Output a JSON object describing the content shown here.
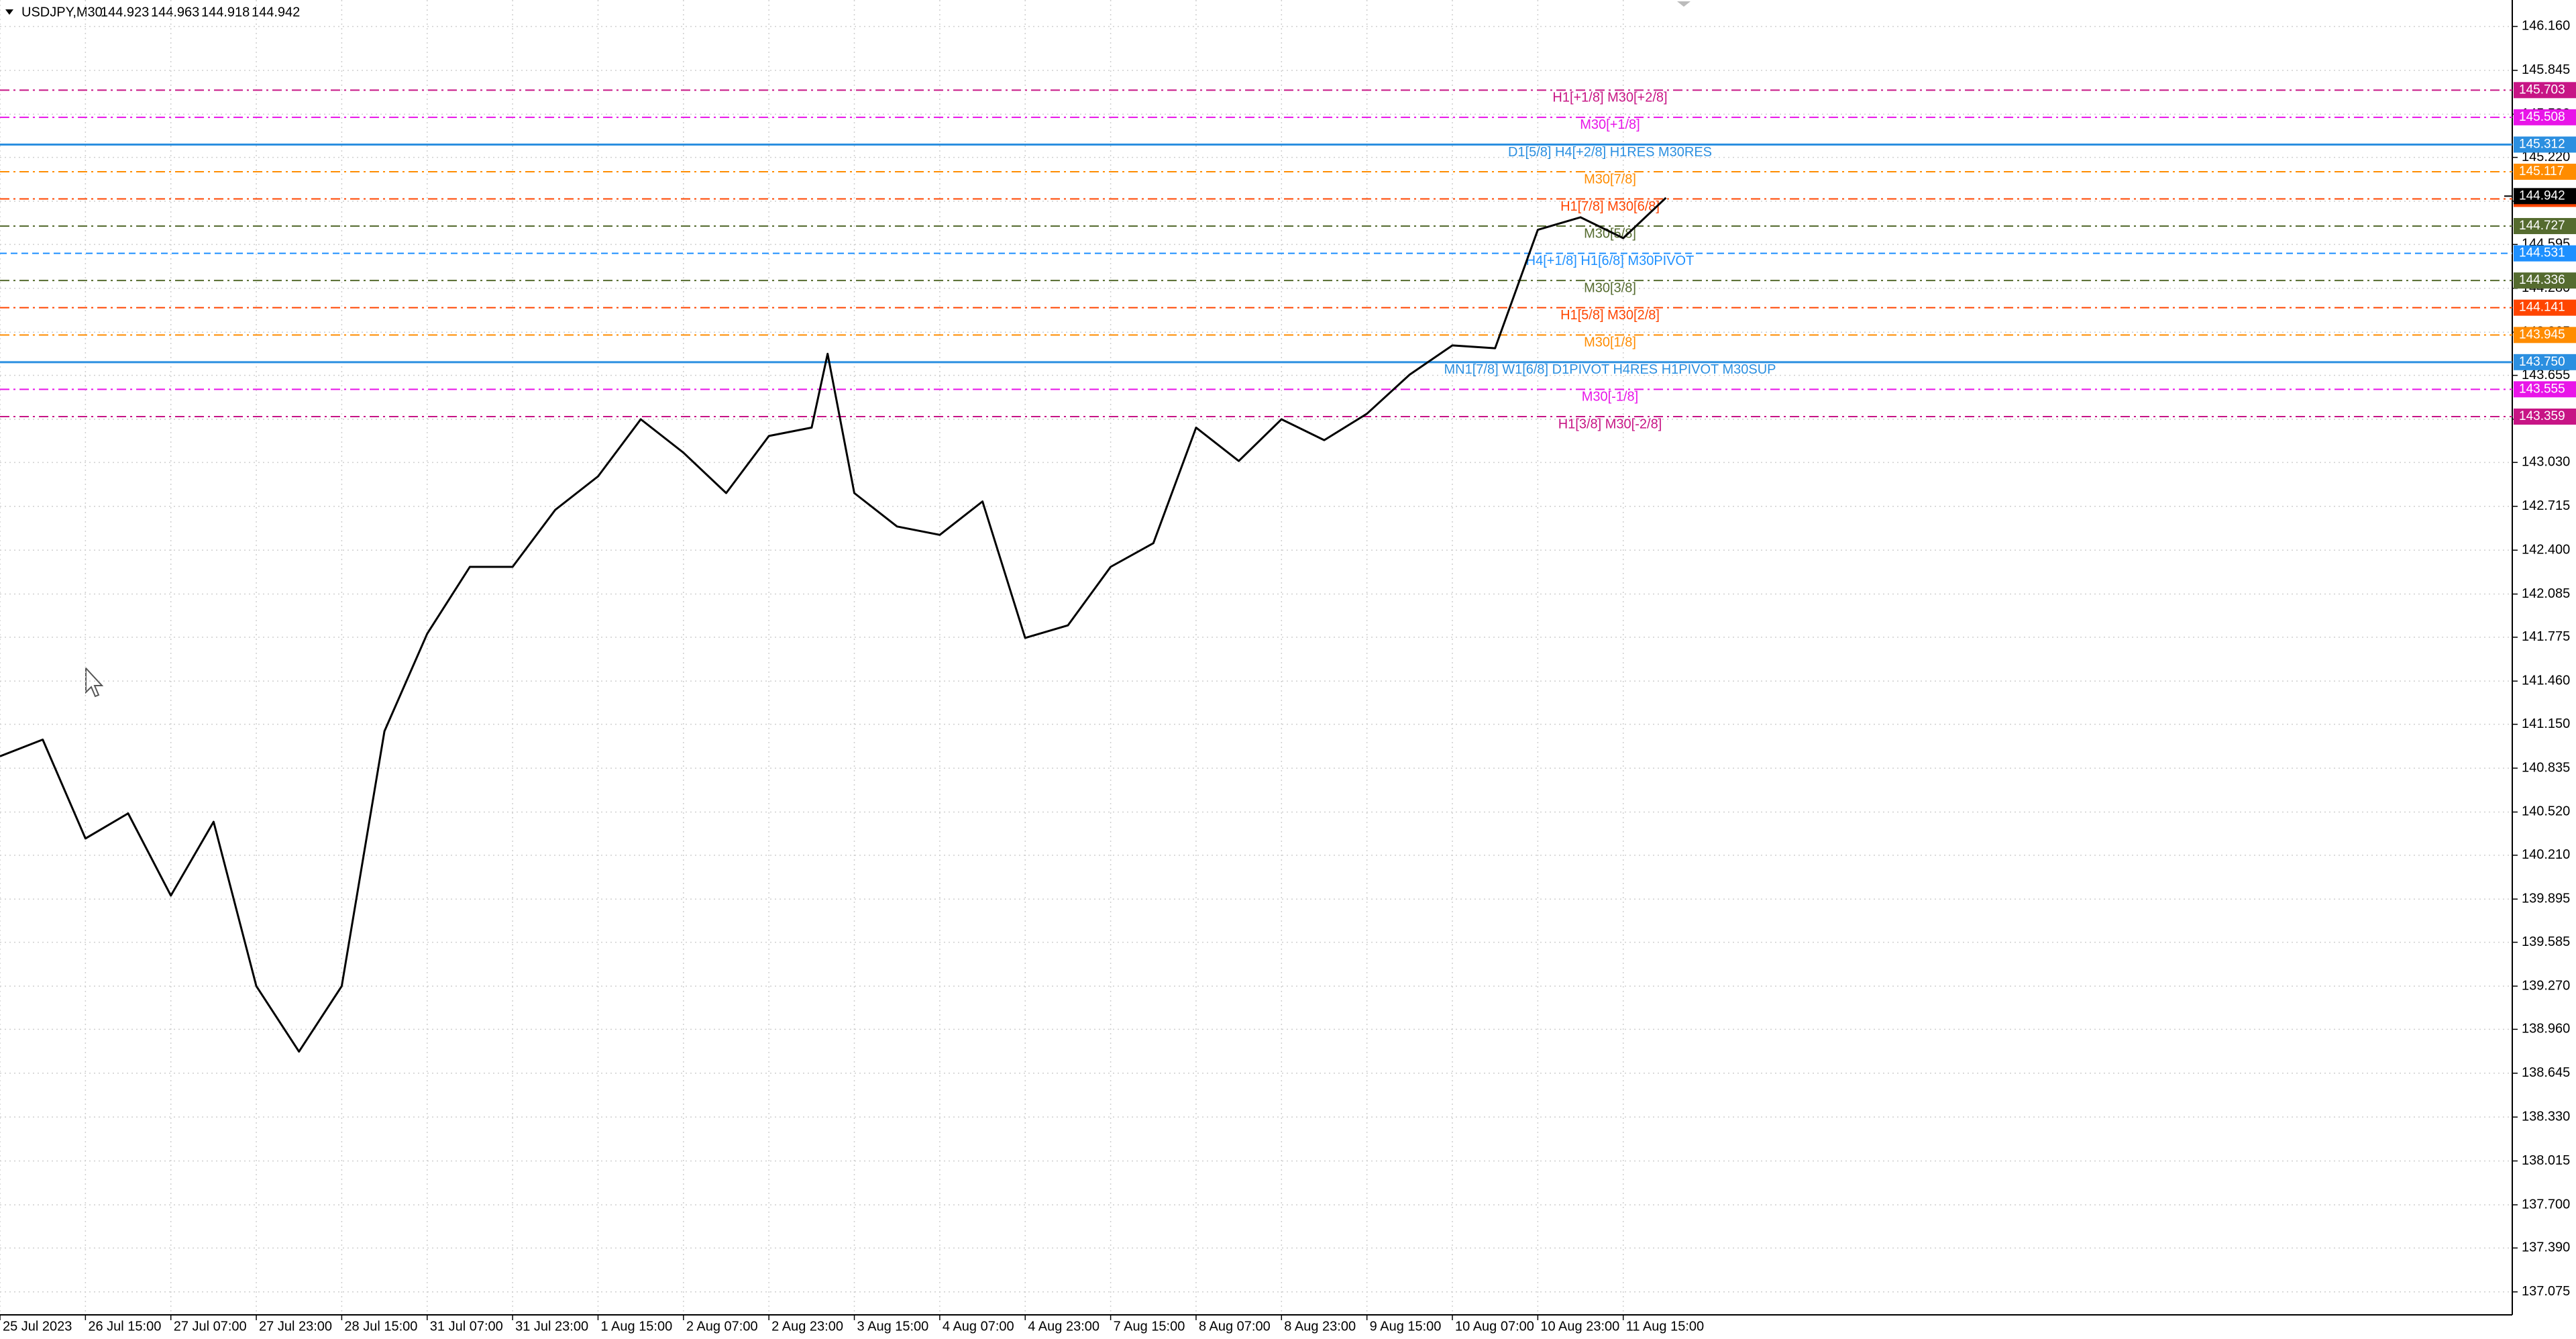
{
  "header": {
    "symbol": "USDJPY,M30",
    "ohlc": [
      144.923,
      144.963,
      144.918,
      144.942
    ]
  },
  "chart_data": {
    "type": "line",
    "x": [
      0,
      16,
      32,
      48,
      64,
      80,
      96,
      112,
      128,
      144,
      160,
      176,
      192,
      208,
      224,
      240,
      256,
      272,
      288,
      304,
      310,
      320,
      336,
      352,
      368,
      384,
      400,
      416,
      432,
      448,
      464,
      480,
      496,
      512,
      528,
      544,
      560,
      576,
      592,
      608,
      624
    ],
    "values": [
      140.92,
      141.04,
      140.33,
      140.51,
      139.92,
      140.45,
      139.27,
      138.8,
      139.27,
      141.1,
      141.8,
      142.28,
      142.28,
      142.69,
      142.93,
      143.34,
      143.1,
      142.81,
      143.22,
      143.28,
      143.81,
      142.81,
      142.57,
      142.51,
      142.75,
      141.77,
      141.86,
      142.28,
      142.45,
      143.28,
      143.04,
      143.34,
      143.19,
      143.38,
      143.66,
      143.87,
      143.85,
      144.7,
      144.79,
      144.64,
      144.93
    ],
    "color": "#000000",
    "xlim": [
      0,
      941
    ],
    "ylim": [
      136.91,
      146.35
    ],
    "xticks": [
      {
        "value": 0,
        "label": "25 Jul 2023"
      },
      {
        "value": 32,
        "label": "26 Jul 15:00"
      },
      {
        "value": 64,
        "label": "27 Jul 07:00"
      },
      {
        "value": 96,
        "label": "27 Jul 23:00"
      },
      {
        "value": 128,
        "label": "28 Jul 15:00"
      },
      {
        "value": 160,
        "label": "31 Jul 07:00"
      },
      {
        "value": 192,
        "label": "31 Jul 23:00"
      },
      {
        "value": 224,
        "label": "1 Aug 15:00"
      },
      {
        "value": 256,
        "label": "2 Aug 07:00"
      },
      {
        "value": 288,
        "label": "2 Aug 23:00"
      },
      {
        "value": 320,
        "label": "3 Aug 15:00"
      },
      {
        "value": 352,
        "label": "4 Aug 07:00"
      },
      {
        "value": 384,
        "label": "4 Aug 23:00"
      },
      {
        "value": 416,
        "label": "7 Aug 15:00"
      },
      {
        "value": 448,
        "label": "8 Aug 07:00"
      },
      {
        "value": 480,
        "label": "8 Aug 23:00"
      },
      {
        "value": 512,
        "label": "9 Aug 15:00"
      },
      {
        "value": 544,
        "label": "10 Aug 07:00"
      },
      {
        "value": 576,
        "label": "10 Aug 23:00"
      },
      {
        "value": 608,
        "label": "11 Aug 15:00"
      }
    ],
    "yticks": [
      {
        "value": 146.16,
        "label": "146.160"
      },
      145.845,
      {
        "value": 145.53,
        "label": "145.530"
      },
      {
        "value": 145.22,
        "label": "145.220"
      },
      144.905,
      144.595,
      {
        "value": 144.28,
        "label": "144.280"
      },
      143.965,
      143.655,
      {
        "value": 143.34,
        "label": "143.340"
      },
      {
        "value": 143.03,
        "label": "143.030"
      },
      142.715,
      {
        "value": 142.4,
        "label": "142.400"
      },
      142.085,
      141.775,
      {
        "value": 141.46,
        "label": "141.460"
      },
      {
        "value": 141.15,
        "label": "141.150"
      },
      140.835,
      {
        "value": 140.52,
        "label": "140.520"
      },
      {
        "value": 140.21,
        "label": "140.210"
      },
      139.895,
      139.585,
      {
        "value": 139.27,
        "label": "139.270"
      },
      {
        "value": 138.96,
        "label": "138.960"
      },
      138.645,
      {
        "value": 138.33,
        "label": "138.330"
      },
      138.015,
      {
        "value": 137.7,
        "label": "137.700"
      },
      {
        "value": 137.39,
        "label": "137.390"
      },
      137.075
    ],
    "grid": true,
    "levels": [
      {
        "price": 145.703,
        "label": "H1[+1/8] M30[+2/8]",
        "color": "#c71585",
        "style": "dashdot"
      },
      {
        "price": 145.508,
        "label": "M30[+1/8]",
        "color": "#e815e8",
        "style": "dashdot"
      },
      {
        "price": 145.312,
        "label": "D1[5/8] H4[+2/8] H1RES M30RES",
        "color": "#2b8fe0",
        "style": "solid"
      },
      {
        "price": 145.117,
        "label": "M30[7/8]",
        "color": "#ff8c00",
        "style": "dashdot"
      },
      {
        "price": 144.922,
        "label": "H1[7/8] M30[6/8]",
        "color": "#ff4500",
        "style": "dashdot"
      },
      {
        "price": 144.727,
        "label": "M30[5/8]",
        "color": "#556b2f",
        "style": "dashdot"
      },
      {
        "price": 144.531,
        "label": "H4[+1/8] H1[6/8] M30PIVOT",
        "color": "#1e90ff",
        "style": "dashed"
      },
      {
        "price": 144.336,
        "label": "M30[3/8]",
        "color": "#556b2f",
        "style": "dashdot"
      },
      {
        "price": 144.141,
        "label": "H1[5/8] M30[2/8]",
        "color": "#ff4500",
        "style": "dashdot"
      },
      {
        "price": 143.945,
        "label": "M30[1/8]",
        "color": "#ff8c00",
        "style": "dashdot"
      },
      {
        "price": {
          "value": 143.75,
          "label": "143.750"
        },
        "label": "MN1[7/8] W1[6/8] D1PIVOT H4RES H1PIVOT M30SUP",
        "color": "#2b8fe0",
        "style": "solid"
      },
      {
        "price": 143.555,
        "label": "M30[-1/8]",
        "color": "#e815e8",
        "style": "dashdot"
      },
      {
        "price": 143.359,
        "label": "H1[3/8] M30[-2/8]",
        "color": "#c71585",
        "style": "dashdot"
      }
    ],
    "current_price": 144.942
  }
}
